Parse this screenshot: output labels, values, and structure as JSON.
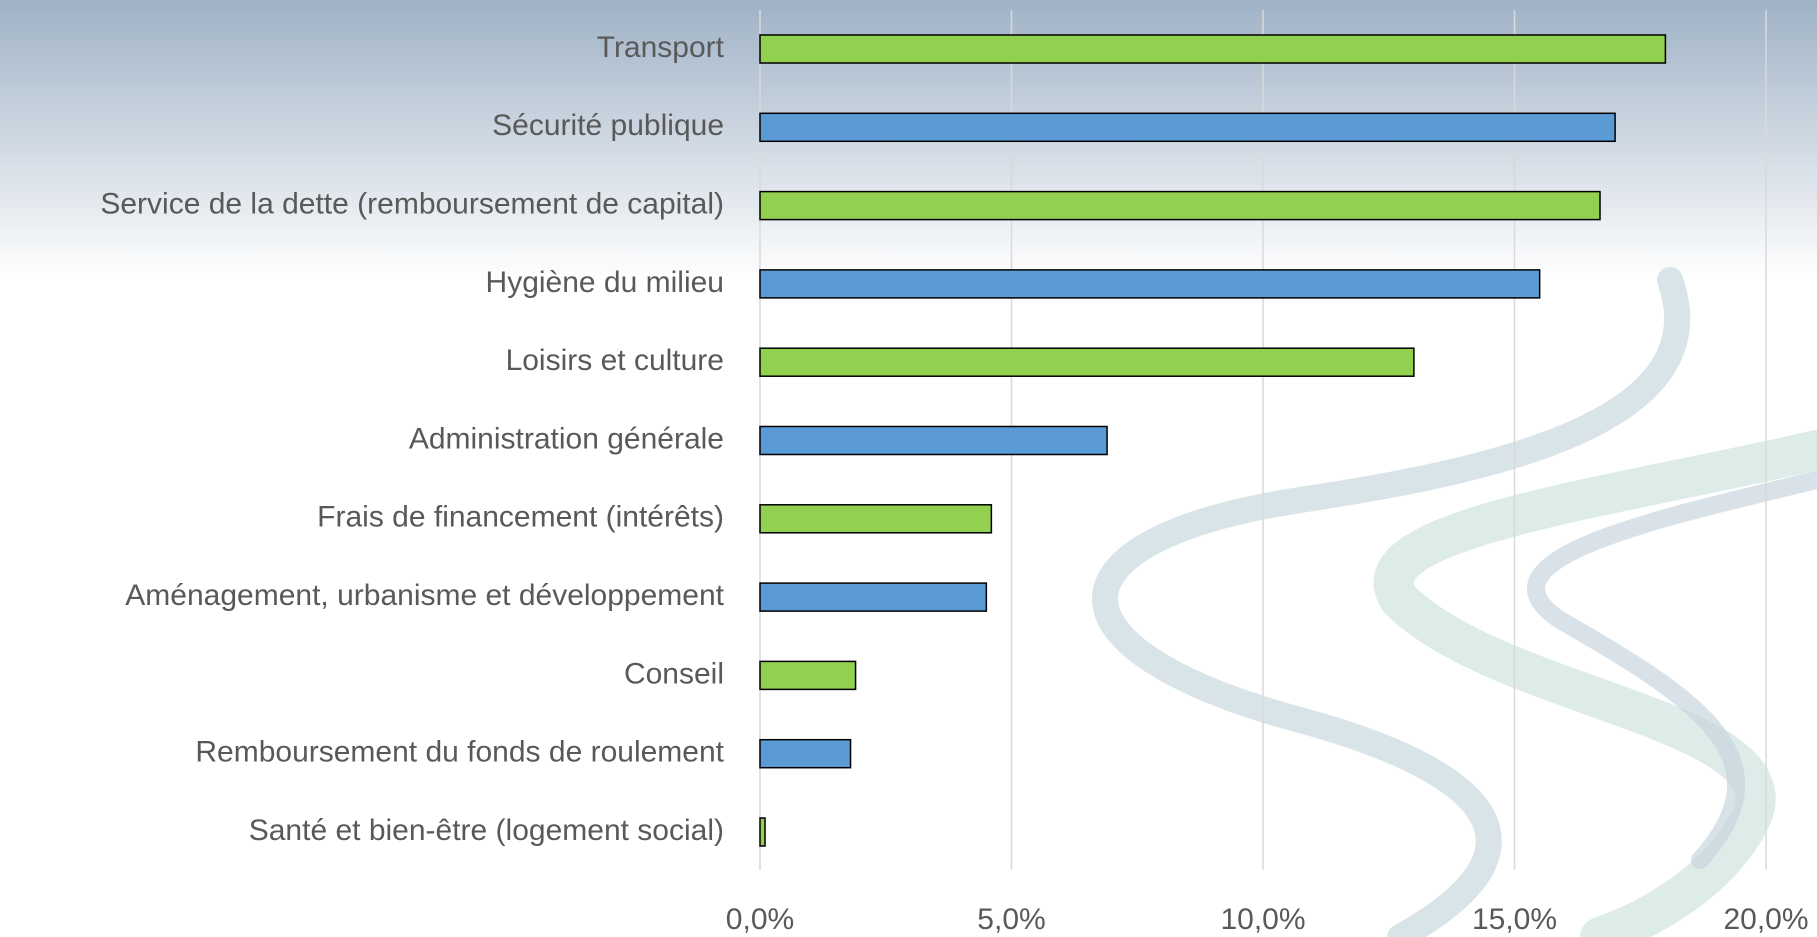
{
  "chart_data": {
    "type": "bar",
    "orientation": "horizontal",
    "categories": [
      "Transport",
      "Sécurité publique",
      "Service de la dette (remboursement de capital)",
      "Hygiène du milieu",
      "Loisirs et culture",
      "Administration générale",
      "Frais de financement (intérêts)",
      "Aménagement, urbanisme et développement",
      "Conseil",
      "Remboursement du fonds de roulement",
      "Santé et bien-être (logement social)"
    ],
    "values": [
      18.0,
      17.0,
      16.7,
      15.5,
      13.0,
      6.9,
      4.6,
      4.5,
      1.9,
      1.8,
      0.1
    ],
    "colors": [
      "#92d050",
      "#5b9bd5",
      "#92d050",
      "#5b9bd5",
      "#92d050",
      "#5b9bd5",
      "#92d050",
      "#5b9bd5",
      "#92d050",
      "#5b9bd5",
      "#92d050"
    ],
    "xlim": [
      0,
      20
    ],
    "xticks": [
      {
        "value": 0,
        "label": "0,0%"
      },
      {
        "value": 5,
        "label": "5,0%"
      },
      {
        "value": 10,
        "label": "10,0%"
      },
      {
        "value": 15,
        "label": "15,0%"
      },
      {
        "value": 20,
        "label": "20,0%"
      }
    ],
    "grid": true
  }
}
